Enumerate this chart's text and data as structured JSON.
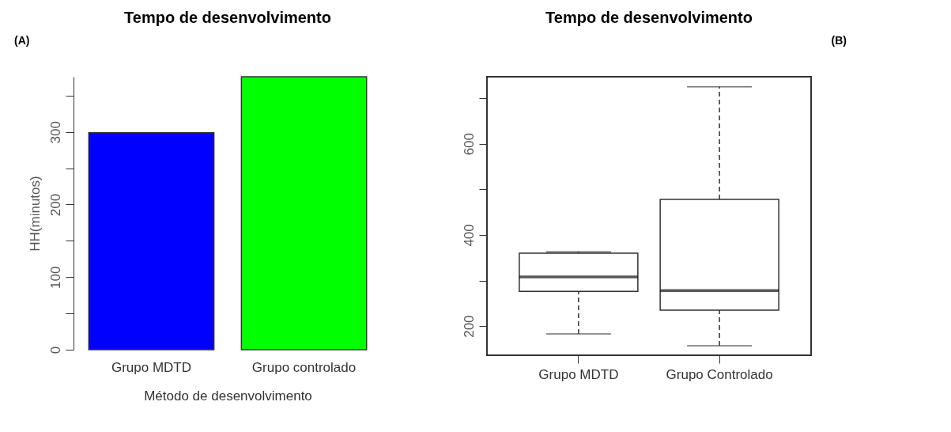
{
  "chart_data": [
    {
      "type": "bar",
      "title": "Tempo de desenvolvimento",
      "xlabel": "Método de desenvolvimento",
      "ylabel": "HH(minutos)",
      "categories": [
        "Grupo MDTD",
        "Grupo controlado"
      ],
      "values": [
        299,
        376
      ],
      "colors": [
        "#0000ff",
        "#00ff00"
      ],
      "ylim": [
        0,
        376
      ],
      "yticks": [
        0,
        {
          "value": 50,
          "label": null
        },
        100,
        {
          "value": 150,
          "label": null
        },
        200,
        {
          "value": 250,
          "label": null
        },
        300,
        {
          "value": 350,
          "label": null
        }
      ],
      "grid": false,
      "annotations": [
        "(A)"
      ]
    },
    {
      "type": "box",
      "title": "Tempo de desenvolvimento",
      "categories": [
        "Grupo MDTD",
        "Grupo Controlado"
      ],
      "boxes": [
        {
          "low": 183,
          "q1": 276,
          "median": 308,
          "q3": 360,
          "high": 363
        },
        {
          "low": 157,
          "q1": 235,
          "median": 278,
          "q3": 478,
          "high": 725
        }
      ],
      "ylim": [
        136,
        747
      ],
      "yticks": [
        200,
        {
          "value": 300,
          "label": null
        },
        400,
        {
          "value": 500,
          "label": null
        },
        600,
        {
          "value": 700,
          "label": null
        }
      ],
      "grid": false,
      "annotations": [
        "(B)"
      ]
    }
  ]
}
